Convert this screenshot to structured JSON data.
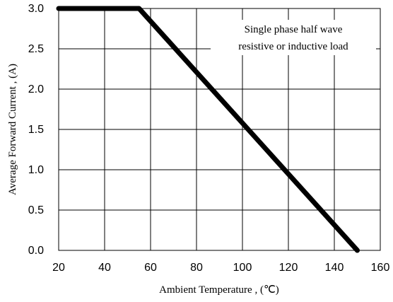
{
  "chart_data": {
    "type": "line",
    "title": "",
    "xlabel": "Ambient Temperature , (℃)",
    "ylabel": "Average Forward Current , (A)",
    "xlim": [
      20,
      160
    ],
    "ylim": [
      0.0,
      3.0
    ],
    "x_ticks": [
      20,
      40,
      60,
      80,
      100,
      120,
      140,
      160
    ],
    "y_ticks": [
      "0.0",
      "0.5",
      "1.0",
      "1.5",
      "2.0",
      "2.5",
      "3.0"
    ],
    "grid": true,
    "series": [
      {
        "color": "#000000",
        "x": [
          20,
          55,
          150
        ],
        "y": [
          3.0,
          3.0,
          0.0
        ]
      }
    ],
    "annotation": {
      "lines": [
        "Single phase half wave",
        "resistive or inductive load"
      ]
    }
  }
}
